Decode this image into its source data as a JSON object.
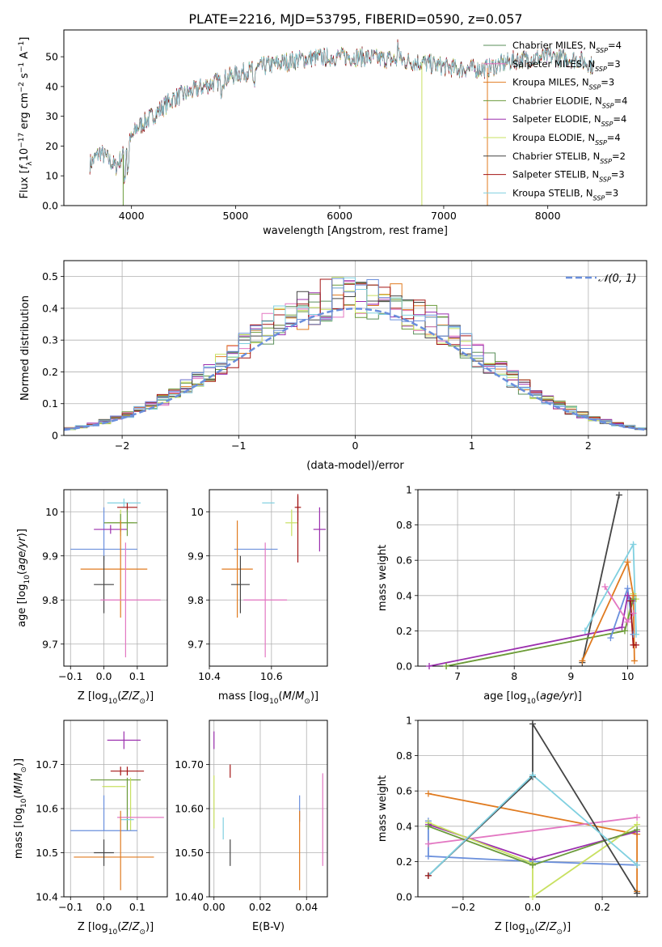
{
  "figure_title": "PLATE=2216, MJD=53795, FIBERID=0590, z=0.057",
  "colors": {
    "Chabrier MILES": "#5a8f5a",
    "Salpeter MILES": "#e377c2",
    "Kroupa MILES": "#e07b20",
    "Chabrier ELODIE": "#6a9a3a",
    "Salpeter ELODIE": "#9b2fae",
    "Kroupa ELODIE": "#c8e060",
    "Chabrier STELIB": "#444444",
    "Salpeter STELIB": "#a31515",
    "Kroupa STELIB": "#80d0e0",
    "blue": "#6a8fdc"
  },
  "chart_data": [
    {
      "type": "line",
      "panel": "spectrum",
      "xlabel": "wavelength [Angstrom, rest frame]",
      "ylabel": "Flux [f_λ 10^-17 erg cm^-2 s^-1 A^-1]",
      "xlim": [
        3350,
        8950
      ],
      "ylim": [
        0,
        59
      ],
      "xticks": [
        4000,
        5000,
        6000,
        7000,
        8000
      ],
      "yticks": [
        0,
        10,
        20,
        30,
        40,
        50
      ],
      "continuum": [
        [
          3600,
          14
        ],
        [
          3700,
          18
        ],
        [
          3850,
          13
        ],
        [
          3950,
          19
        ],
        [
          4050,
          26
        ],
        [
          4200,
          30
        ],
        [
          4400,
          36
        ],
        [
          4700,
          40
        ],
        [
          5000,
          44
        ],
        [
          5300,
          47
        ],
        [
          5600,
          49
        ],
        [
          5900,
          50
        ],
        [
          6200,
          50
        ],
        [
          6500,
          49
        ],
        [
          6800,
          48
        ],
        [
          7100,
          46
        ],
        [
          7400,
          46
        ],
        [
          7700,
          49
        ],
        [
          8000,
          50
        ],
        [
          8300,
          49
        ],
        [
          8500,
          46
        ]
      ],
      "legend": [
        {
          "label": "Chabrier MILES, N_SSP=4",
          "color": "#5a8f5a"
        },
        {
          "label": "Salpeter MILES, N_SSP=3",
          "color": "#e377c2"
        },
        {
          "label": "Kroupa MILES, N_SSP=3",
          "color": "#e07b20"
        },
        {
          "label": "Chabrier ELODIE, N_SSP=4",
          "color": "#6a9a3a"
        },
        {
          "label": "Salpeter ELODIE, N_SSP=4",
          "color": "#9b2fae"
        },
        {
          "label": "Kroupa ELODIE, N_SSP=4",
          "color": "#c8e060"
        },
        {
          "label": "Chabrier STELIB, N_SSP=2",
          "color": "#444444"
        },
        {
          "label": "Salpeter STELIB, N_SSP=3",
          "color": "#a31515"
        },
        {
          "label": "Kroupa STELIB, N_SSP=3",
          "color": "#80d0e0"
        }
      ],
      "legend_placement": "top-right",
      "grid": false
    },
    {
      "type": "histogram",
      "panel": "residuals",
      "xlabel": "(data-model)/error",
      "ylabel": "Normed distribution",
      "xlim": [
        -2.5,
        2.5
      ],
      "ylim": [
        0,
        0.55
      ],
      "xticks": [
        -2,
        -1,
        0,
        1,
        2
      ],
      "yticks": [
        0.0,
        0.1,
        0.2,
        0.3,
        0.4,
        0.5
      ],
      "bin_width": 0.1,
      "reference_label": "𝒩(0, 1)",
      "reference_color": "#6a8fdc",
      "legend_placement": "top-right",
      "grid": true
    },
    {
      "type": "errorbar",
      "panel": "age_vs_Z",
      "xlabel": "Z [log10(Z/Z⊙)]",
      "ylabel": "age [log10(age/yr)]",
      "xlim": [
        -0.12,
        0.19
      ],
      "ylim": [
        9.65,
        10.05
      ],
      "xticks": [
        -0.1,
        0.0,
        0.1
      ],
      "yticks": [
        9.7,
        9.8,
        9.9,
        10.0
      ],
      "points": [
        {
          "x": 0.06,
          "xerr": 0.05,
          "y": 10.02,
          "yerr": 0.01,
          "color": "#80d0e0"
        },
        {
          "x": 0.07,
          "xerr": 0.03,
          "y": 10.01,
          "yerr": 0.01,
          "color": "#a31515"
        },
        {
          "x": 0.0,
          "xerr": 0.0,
          "y": 9.95,
          "yerr": 0.06,
          "color": "#6a8fdc"
        },
        {
          "x": 0.05,
          "xerr": 0.04,
          "y": 9.975,
          "yerr": 0.03,
          "color": "#c8e060"
        },
        {
          "x": 0.05,
          "xerr": 0.05,
          "y": 9.975,
          "yerr": 0.02,
          "color": "#6a9a3a"
        },
        {
          "x": 0.02,
          "xerr": 0.05,
          "y": 9.96,
          "yerr": 0.01,
          "color": "#9b2fae"
        },
        {
          "x": 0.0,
          "xerr": 0.1,
          "y": 9.915,
          "yerr": 0.0,
          "color": "#6a8fdc"
        },
        {
          "x": 0.03,
          "xerr": 0.1,
          "y": 9.87,
          "yerr": 0.0,
          "color": "#e07b20"
        },
        {
          "x": 0.05,
          "xerr": 0.0,
          "y": 9.87,
          "yerr": 0.11,
          "color": "#e07b20"
        },
        {
          "x": 0.0,
          "xerr": 0.03,
          "y": 9.835,
          "yerr": 0.065,
          "color": "#444444"
        },
        {
          "x": 0.08,
          "xerr": 0.09,
          "y": 9.8,
          "yerr": 0.0,
          "color": "#e377c2"
        },
        {
          "x": 0.065,
          "xerr": 0.0,
          "y": 9.8,
          "yerr": 0.13,
          "color": "#e377c2"
        },
        {
          "x": 0.07,
          "xerr": 0.0,
          "y": 9.975,
          "yerr": 0.03,
          "color": "#6a9a3a"
        }
      ],
      "grid": true
    },
    {
      "type": "errorbar",
      "panel": "age_vs_mass",
      "xlabel": "mass [log10(M/M⊙)]",
      "ylabel": "",
      "xlim": [
        10.4,
        10.78
      ],
      "ylim": [
        9.65,
        10.05
      ],
      "xticks": [
        10.4,
        10.6
      ],
      "yticks": [
        9.7,
        9.8,
        9.9,
        10.0
      ],
      "points": [
        {
          "x": 10.59,
          "xerr": 0.02,
          "y": 10.02,
          "yerr": 0.0,
          "color": "#80d0e0"
        },
        {
          "x": 10.685,
          "xerr": 0.01,
          "y": 10.01,
          "yerr": 0.03,
          "color": "#a31515"
        },
        {
          "x": 10.665,
          "xerr": 0.02,
          "y": 9.975,
          "yerr": 0.03,
          "color": "#c8e060"
        },
        {
          "x": 10.755,
          "xerr": 0.02,
          "y": 9.96,
          "yerr": 0.05,
          "color": "#9b2fae"
        },
        {
          "x": 10.55,
          "xerr": 0.07,
          "y": 9.915,
          "yerr": 0.0,
          "color": "#6a8fdc"
        },
        {
          "x": 10.49,
          "xerr": 0.05,
          "y": 9.87,
          "yerr": 0.11,
          "color": "#e07b20"
        },
        {
          "x": 10.5,
          "xerr": 0.03,
          "y": 9.835,
          "yerr": 0.065,
          "color": "#444444"
        },
        {
          "x": 10.58,
          "xerr": 0.07,
          "y": 9.8,
          "yerr": 0.13,
          "color": "#e377c2"
        },
        {
          "x": 10.685,
          "xerr": 0.0,
          "y": 9.96,
          "yerr": 0.075,
          "color": "#a31515"
        }
      ],
      "grid": true
    },
    {
      "type": "line",
      "panel": "mass_weight_vs_age",
      "xlabel": "age [log10(age/yr)]",
      "ylabel": "mass weight",
      "xlim": [
        6.3,
        10.35
      ],
      "ylim": [
        0,
        1
      ],
      "xticks": [
        7,
        8,
        9,
        10
      ],
      "yticks": [
        0.0,
        0.2,
        0.4,
        0.6,
        0.8,
        1.0
      ],
      "series": [
        {
          "color": "#444444",
          "x": [
            9.2,
            9.85
          ],
          "y": [
            0.02,
            0.97
          ]
        },
        {
          "color": "#9b2fae",
          "x": [
            6.5,
            9.9,
            10.0,
            10.1
          ],
          "y": [
            0.0,
            0.22,
            0.4,
            0.37
          ]
        },
        {
          "color": "#c8e060",
          "x": [
            6.8,
            9.95,
            10.1,
            10.15
          ],
          "y": [
            0.0,
            0.2,
            0.41,
            0.38
          ]
        },
        {
          "color": "#6a9a3a",
          "x": [
            6.8,
            9.95,
            10.1
          ],
          "y": [
            0.0,
            0.2,
            0.38
          ]
        },
        {
          "color": "#e07b20",
          "x": [
            9.2,
            10.0,
            10.1,
            10.12
          ],
          "y": [
            0.03,
            0.59,
            0.4,
            0.03
          ]
        },
        {
          "color": "#6a8fdc",
          "x": [
            9.7,
            10.0,
            10.1
          ],
          "y": [
            0.16,
            0.44,
            0.18
          ]
        },
        {
          "color": "#e377c2",
          "x": [
            9.6,
            10.0,
            10.1
          ],
          "y": [
            0.45,
            0.25,
            0.3
          ]
        },
        {
          "color": "#80d0e0",
          "x": [
            9.25,
            10.1,
            10.15
          ],
          "y": [
            0.2,
            0.69,
            0.18
          ]
        },
        {
          "color": "#a31515",
          "x": [
            10.05,
            10.1,
            10.15
          ],
          "y": [
            0.37,
            0.12,
            0.12
          ]
        }
      ],
      "grid": true
    },
    {
      "type": "errorbar",
      "panel": "mass_vs_Z",
      "xlabel": "Z [log10(Z/Z⊙)]",
      "ylabel": "mass [log10(M/M⊙)]",
      "xlim": [
        -0.12,
        0.19
      ],
      "ylim": [
        10.4,
        10.8
      ],
      "xticks": [
        -0.1,
        0.0,
        0.1
      ],
      "yticks": [
        10.4,
        10.5,
        10.6,
        10.7
      ],
      "points": [
        {
          "x": 0.06,
          "xerr": 0.05,
          "y": 10.755,
          "yerr": 0.02,
          "color": "#9b2fae"
        },
        {
          "x": 0.07,
          "xerr": 0.05,
          "y": 10.685,
          "yerr": 0.01,
          "color": "#a31515"
        },
        {
          "x": 0.05,
          "xerr": 0.0,
          "y": 10.685,
          "yerr": 0.01,
          "color": "#a31515"
        },
        {
          "x": 0.035,
          "xerr": 0.075,
          "y": 10.665,
          "yerr": 0.0,
          "color": "#6a9a3a"
        },
        {
          "x": 0.03,
          "xerr": 0.035,
          "y": 10.65,
          "yerr": 0.0,
          "color": "#c8e060"
        },
        {
          "x": 0.08,
          "xerr": 0.0,
          "y": 10.61,
          "yerr": 0.06,
          "color": "#c8e060"
        },
        {
          "x": 0.07,
          "xerr": 0.0,
          "y": 10.61,
          "yerr": 0.06,
          "color": "#6a9a3a"
        },
        {
          "x": 0.0,
          "xerr": 0.0,
          "y": 10.59,
          "yerr": 0.04,
          "color": "#6a8fdc"
        },
        {
          "x": 0.11,
          "xerr": 0.07,
          "y": 10.58,
          "yerr": 0.0,
          "color": "#e377c2"
        },
        {
          "x": 0.07,
          "xerr": 0.02,
          "y": 10.575,
          "yerr": 0.0,
          "color": "#80d0e0"
        },
        {
          "x": 0.0,
          "xerr": 0.1,
          "y": 10.55,
          "yerr": 0.0,
          "color": "#6a8fdc"
        },
        {
          "x": 0.05,
          "xerr": 0.0,
          "y": 10.505,
          "yerr": 0.09,
          "color": "#e07b20"
        },
        {
          "x": 0.03,
          "xerr": 0.12,
          "y": 10.49,
          "yerr": 0.0,
          "color": "#e07b20"
        },
        {
          "x": 0.0,
          "xerr": 0.03,
          "y": 10.5,
          "yerr": 0.03,
          "color": "#444444"
        }
      ],
      "grid": true
    },
    {
      "type": "errorbar",
      "panel": "mass_vs_EBV",
      "xlabel": "E(B-V)",
      "ylabel": "",
      "xlim": [
        -0.002,
        0.049
      ],
      "ylim": [
        10.4,
        10.8
      ],
      "xticks": [
        0.0,
        0.02,
        0.04
      ],
      "yticks": [
        10.4,
        10.5,
        10.6,
        10.7
      ],
      "points": [
        {
          "x": 0.0,
          "xerr": 0.0,
          "y": 10.755,
          "yerr": 0.02,
          "color": "#9b2fae"
        },
        {
          "x": 0.007,
          "xerr": 0.0,
          "y": 10.685,
          "yerr": 0.015,
          "color": "#a31515"
        },
        {
          "x": 0.0,
          "xerr": 0.0,
          "y": 10.615,
          "yerr": 0.06,
          "color": "#c8e060"
        },
        {
          "x": 0.004,
          "xerr": 0.0,
          "y": 10.555,
          "yerr": 0.025,
          "color": "#80d0e0"
        },
        {
          "x": 0.007,
          "xerr": 0.0,
          "y": 10.5,
          "yerr": 0.03,
          "color": "#444444"
        },
        {
          "x": 0.037,
          "xerr": 0.0,
          "y": 10.6,
          "yerr": 0.03,
          "color": "#6a8fdc"
        },
        {
          "x": 0.037,
          "xerr": 0.0,
          "y": 10.505,
          "yerr": 0.09,
          "color": "#e07b20"
        },
        {
          "x": 0.047,
          "xerr": 0.0,
          "y": 10.575,
          "yerr": 0.105,
          "color": "#e377c2"
        }
      ],
      "grid": true
    },
    {
      "type": "line",
      "panel": "mass_weight_vs_Z",
      "xlabel": "Z [log10(Z/Z⊙)]",
      "ylabel": "mass weight",
      "xlim": [
        -0.33,
        0.33
      ],
      "ylim": [
        0,
        1
      ],
      "xticks": [
        -0.2,
        0.0,
        0.2
      ],
      "yticks": [
        0.0,
        0.2,
        0.4,
        0.6,
        0.8,
        1.0
      ],
      "series": [
        {
          "color": "#e07b20",
          "x": [
            -0.3,
            0.3,
            0.3
          ],
          "y": [
            0.585,
            0.355,
            0.03
          ]
        },
        {
          "color": "#e377c2",
          "x": [
            -0.3,
            0.3
          ],
          "y": [
            0.3,
            0.45
          ]
        },
        {
          "color": "#6a8fdc",
          "x": [
            -0.3,
            -0.3,
            0.0,
            0.3
          ],
          "y": [
            0.43,
            0.23,
            0.2,
            0.18
          ]
        },
        {
          "color": "#9b2fae",
          "x": [
            -0.3,
            0.0,
            0.3
          ],
          "y": [
            0.41,
            0.21,
            0.37
          ]
        },
        {
          "color": "#c8e060",
          "x": [
            -0.3,
            0.0,
            0.0,
            0.3
          ],
          "y": [
            0.42,
            0.19,
            0.0,
            0.41
          ]
        },
        {
          "color": "#6a9a3a",
          "x": [
            -0.3,
            0.0,
            0.3
          ],
          "y": [
            0.4,
            0.18,
            0.38
          ]
        },
        {
          "color": "#444444",
          "x": [
            -0.3,
            0.0,
            0.0,
            0.3
          ],
          "y": [
            0.12,
            0.68,
            0.98,
            0.02
          ]
        },
        {
          "color": "#80d0e0",
          "x": [
            -0.3,
            0.0,
            0.3
          ],
          "y": [
            0.12,
            0.69,
            0.18
          ]
        },
        {
          "color": "#a31515",
          "x": [
            -0.3
          ],
          "y": [
            0.12
          ]
        }
      ],
      "grid": true
    }
  ]
}
